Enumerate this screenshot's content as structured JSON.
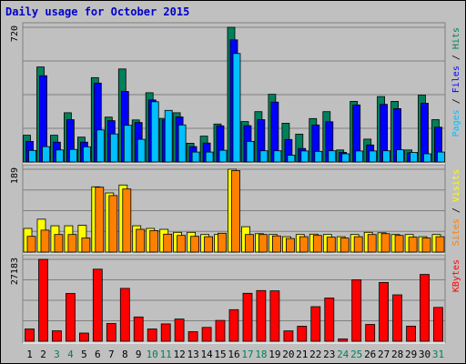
{
  "colors": {
    "background": "#c0c0c0",
    "frame": "#ffffff",
    "title": "#0000cc",
    "hits": "#00805c",
    "files": "#0000ff",
    "pages": "#00c0ff",
    "visits": "#ffff00",
    "sites": "#ff8000",
    "kbytes": "#ff0000",
    "weekday_label": "#000000",
    "weekend_label": "#00805c",
    "gridline": "#808080"
  },
  "chart_data": {
    "type": "bar",
    "title": "Daily usage for October 2015",
    "days": [
      "1",
      "2",
      "3",
      "4",
      "5",
      "6",
      "7",
      "8",
      "9",
      "10",
      "11",
      "12",
      "13",
      "14",
      "15",
      "16",
      "17",
      "18",
      "19",
      "20",
      "21",
      "22",
      "23",
      "24",
      "25",
      "26",
      "27",
      "28",
      "29",
      "30",
      "31"
    ],
    "weekend_days": [
      "3",
      "4",
      "10",
      "11",
      "17",
      "18",
      "24",
      "25",
      "31"
    ],
    "panels": [
      {
        "id": "hits_files_pages",
        "max_label": "720",
        "ylim": [
          0,
          720
        ],
        "legend": [
          {
            "text": "Pages",
            "color": "#00c0ff"
          },
          {
            "text": " / ",
            "color": "#000000"
          },
          {
            "text": "Files",
            "color": "#0000ff"
          },
          {
            "text": " / ",
            "color": "#000000"
          },
          {
            "text": "Hits",
            "color": "#00805c"
          }
        ],
        "series": [
          {
            "name": "Hits",
            "color": "#00805c",
            "values": [
              143,
              508,
              143,
              263,
              133,
              451,
              240,
              497,
              225,
              370,
              233,
              263,
              100,
              138,
              203,
              720,
              216,
              269,
              362,
              207,
              149,
              232,
              269,
              64,
              324,
              122,
              350,
              324,
              64,
              357,
              226
            ]
          },
          {
            "name": "Files",
            "color": "#0000ff",
            "values": [
              110,
              461,
              106,
              226,
              106,
              422,
              221,
              377,
              211,
              332,
              225,
              241,
              82,
              101,
              193,
              653,
              194,
              226,
              320,
              120,
              72,
              198,
              215,
              51,
              305,
              91,
              308,
              285,
              49,
              314,
              186
            ]
          },
          {
            "name": "Pages",
            "color": "#00c0ff",
            "values": [
              62,
              82,
              64,
              67,
              81,
              171,
              150,
              196,
              121,
              322,
              276,
              198,
              53,
              53,
              63,
              580,
              110,
              60,
              60,
              36,
              59,
              57,
              60,
              44,
              59,
              59,
              60,
              65,
              51,
              44,
              53
            ]
          }
        ]
      },
      {
        "id": "visits_sites",
        "max_label": "189",
        "ylim": [
          0,
          189
        ],
        "legend": [
          {
            "text": "Sites",
            "color": "#ff8000"
          },
          {
            "text": " / ",
            "color": "#000000"
          },
          {
            "text": "Visits",
            "color": "#ffff00"
          }
        ],
        "series": [
          {
            "name": "Visits",
            "color": "#ffff00",
            "values": [
              54,
              75,
              60,
              60,
              61,
              149,
              135,
              153,
              60,
              54,
              52,
              45,
              45,
              40,
              40,
              189,
              58,
              42,
              40,
              35,
              40,
              41,
              40,
              35,
              40,
              45,
              44,
              40,
              40,
              35,
              40
            ]
          },
          {
            "name": "Sites",
            "color": "#ff8000",
            "values": [
              36,
              50,
              40,
              40,
              32,
              148,
              129,
              144,
              52,
              49,
              41,
              38,
              36,
              35,
              43,
              186,
              40,
              40,
              37,
              31,
              35,
              38,
              34,
              32,
              35,
              40,
              42,
              38,
              34,
              32,
              35
            ]
          }
        ]
      },
      {
        "id": "kbytes",
        "max_label": "27183",
        "ylim": [
          0,
          27183
        ],
        "legend": [
          {
            "text": "KBytes",
            "color": "#ff0000"
          }
        ],
        "series": [
          {
            "name": "KBytes",
            "color": "#ff0000",
            "values": [
              4080,
              27183,
              3470,
              15870,
              2720,
              23930,
              5880,
              17560,
              8060,
              4090,
              5780,
              7370,
              3160,
              4600,
              6910,
              10490,
              15910,
              16810,
              16720,
              3450,
              4990,
              11490,
              14360,
              800,
              20380,
              5600,
              19520,
              15410,
              5010,
              22180,
              11240
            ]
          }
        ]
      }
    ]
  }
}
